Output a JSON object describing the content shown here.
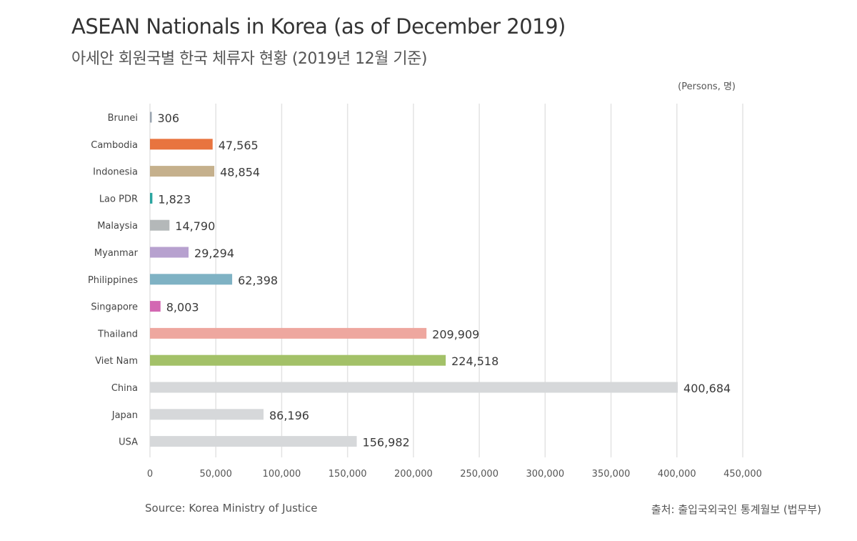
{
  "header": {
    "title": "ASEAN Nationals in Korea (as of December 2019)",
    "subtitle": "아세안 회원국별 한국 체류자 현황 (2019년 12월 기준)",
    "unit": "(Persons, 명)"
  },
  "footer": {
    "source_en": "Source: Korea Ministry of Justice",
    "source_ko": "출처: 출입국외국인 통계월보 (법무부)"
  },
  "chart_data": {
    "type": "bar",
    "orientation": "horizontal",
    "title": "ASEAN Nationals in Korea (as of December 2019)",
    "subtitle": "아세안 회원국별 한국 체류자 현황 (2019년 12월 기준)",
    "unit": "(Persons, 명)",
    "categories": [
      "Brunei",
      "Cambodia",
      "Indonesia",
      "Lao PDR",
      "Malaysia",
      "Myanmar",
      "Philippines",
      "Singapore",
      "Thailand",
      "Viet Nam",
      "China",
      "Japan",
      "USA"
    ],
    "values": [
      306,
      47565,
      48854,
      1823,
      14790,
      29294,
      62398,
      8003,
      209909,
      224518,
      400684,
      86196,
      156982
    ],
    "value_labels": [
      "306",
      "47,565",
      "48,854",
      "1,823",
      "14,790",
      "29,294",
      "62,398",
      "8,003",
      "209,909",
      "224,518",
      "400,684",
      "86,196",
      "156,982"
    ],
    "colors": [
      "#9aa4b0",
      "#e8743f",
      "#c5b08c",
      "#2aa5a0",
      "#b4b8b9",
      "#b7a1cf",
      "#7fb2c4",
      "#d368b2",
      "#eea79f",
      "#a3c168",
      "#d6d8da",
      "#d6d8da",
      "#d6d8da"
    ],
    "xlim": [
      0,
      450000
    ],
    "xticks": [
      0,
      50000,
      100000,
      150000,
      200000,
      250000,
      300000,
      350000,
      400000,
      450000
    ],
    "xtick_labels": [
      "0",
      "50,000",
      "100,000",
      "150,000",
      "200,000",
      "250,000",
      "300,000",
      "350,000",
      "400,000",
      "450,000"
    ],
    "grid": true,
    "gridline_color": "#e3e3e3"
  }
}
